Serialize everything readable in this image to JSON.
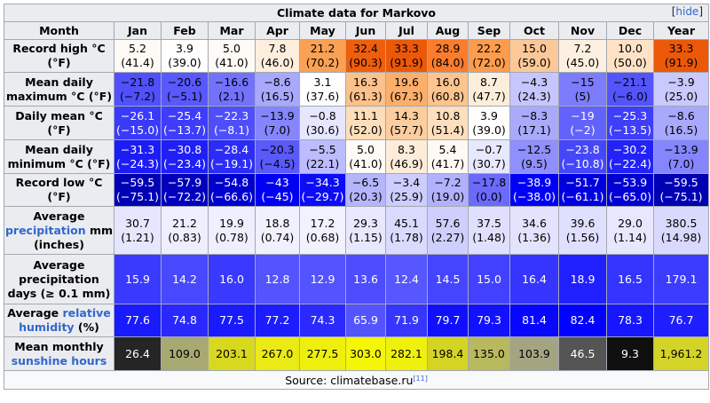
{
  "title": "Climate data for Markovo",
  "hide_label": "hide",
  "header": {
    "month": "Month",
    "months": [
      "Jan",
      "Feb",
      "Mar",
      "Apr",
      "May",
      "Jun",
      "Jul",
      "Aug",
      "Sep",
      "Oct",
      "Nov",
      "Dec",
      "Year"
    ]
  },
  "rows": [
    {
      "id": "record-high",
      "label": "Record high °C (°F)",
      "height": 37,
      "cells": [
        {
          "v": "5.2",
          "s": "(41.4)",
          "bg": "#fefaf5",
          "fg": "#000000"
        },
        {
          "v": "3.9",
          "s": "(39.0)",
          "bg": "#fffefd",
          "fg": "#000000"
        },
        {
          "v": "5.0",
          "s": "(41.0)",
          "bg": "#fefaf5",
          "fg": "#000000"
        },
        {
          "v": "7.8",
          "s": "(46.0)",
          "bg": "#fdeede",
          "fg": "#000000"
        },
        {
          "v": "21.2",
          "s": "(70.2)",
          "bg": "#fba155",
          "fg": "#000000"
        },
        {
          "v": "32.4",
          "s": "(90.3)",
          "bg": "#f05e0c",
          "fg": "#000000"
        },
        {
          "v": "33.3",
          "s": "(91.9)",
          "bg": "#ec5808",
          "fg": "#000000"
        },
        {
          "v": "28.9",
          "s": "(84.0)",
          "bg": "#fb7c2c",
          "fg": "#000000"
        },
        {
          "v": "22.2",
          "s": "(72.0)",
          "bg": "#fc9c4c",
          "fg": "#000000"
        },
        {
          "v": "15.0",
          "s": "(59.0)",
          "bg": "#fcc898",
          "fg": "#000000"
        },
        {
          "v": "7.2",
          "s": "(45.0)",
          "bg": "#fdf0e1",
          "fg": "#000000"
        },
        {
          "v": "10.0",
          "s": "(50.0)",
          "bg": "#fde2c6",
          "fg": "#000000"
        },
        {
          "v": "33.3",
          "s": "(91.9)",
          "bg": "#ec5808",
          "fg": "#000000"
        }
      ]
    },
    {
      "id": "mean-daily-max",
      "label": "Mean daily maximum °C (°F)",
      "height": 38,
      "cells": [
        {
          "v": "−21.8",
          "s": "(−7.2)",
          "bg": "#5050fc",
          "fg": "#000000"
        },
        {
          "v": "−20.6",
          "s": "(−5.1)",
          "bg": "#5858fc",
          "fg": "#000000"
        },
        {
          "v": "−16.6",
          "s": "(2.1)",
          "bg": "#7272fc",
          "fg": "#000000"
        },
        {
          "v": "−8.6",
          "s": "(16.5)",
          "bg": "#a8a8fd",
          "fg": "#000000"
        },
        {
          "v": "3.1",
          "s": "(37.6)",
          "bg": "#fffefe",
          "fg": "#000000"
        },
        {
          "v": "16.3",
          "s": "(61.3)",
          "bg": "#fcc28b",
          "fg": "#000000"
        },
        {
          "v": "19.6",
          "s": "(67.3)",
          "bg": "#fbaf6b",
          "fg": "#000000"
        },
        {
          "v": "16.0",
          "s": "(60.8)",
          "bg": "#fcc48e",
          "fg": "#000000"
        },
        {
          "v": "8.7",
          "s": "(47.7)",
          "bg": "#fdeeda",
          "fg": "#000000"
        },
        {
          "v": "−4.3",
          "s": "(24.3)",
          "bg": "#c6c6fe",
          "fg": "#000000"
        },
        {
          "v": "−15",
          "s": "(5)",
          "bg": "#7c7cfc",
          "fg": "#000000"
        },
        {
          "v": "−21.1",
          "s": "(−6.0)",
          "bg": "#5454fc",
          "fg": "#000000"
        },
        {
          "v": "−3.9",
          "s": "(25.0)",
          "bg": "#c9c9fe",
          "fg": "#000000"
        }
      ]
    },
    {
      "id": "daily-mean",
      "label": "Daily mean °C (°F)",
      "height": 38,
      "cells": [
        {
          "v": "−26.1",
          "s": "(−15.0)",
          "bg": "#3a3afb",
          "fg": "#ffffff"
        },
        {
          "v": "−25.4",
          "s": "(−13.7)",
          "bg": "#3d3dfb",
          "fg": "#ffffff"
        },
        {
          "v": "−22.3",
          "s": "(−8.1)",
          "bg": "#4e4efc",
          "fg": "#ffffff"
        },
        {
          "v": "−13.9",
          "s": "(7.0)",
          "bg": "#8585fd",
          "fg": "#000000"
        },
        {
          "v": "−0.8",
          "s": "(30.6)",
          "bg": "#e6e6fe",
          "fg": "#000000"
        },
        {
          "v": "11.1",
          "s": "(52.0)",
          "bg": "#fdddba",
          "fg": "#000000"
        },
        {
          "v": "14.3",
          "s": "(57.7)",
          "bg": "#fccd9e",
          "fg": "#000000"
        },
        {
          "v": "10.8",
          "s": "(51.4)",
          "bg": "#fddfbe",
          "fg": "#000000"
        },
        {
          "v": "3.9",
          "s": "(39.0)",
          "bg": "#fffefd",
          "fg": "#000000"
        },
        {
          "v": "−8.3",
          "s": "(17.1)",
          "bg": "#aaaafd",
          "fg": "#000000"
        },
        {
          "v": "−19",
          "s": "(−2)",
          "bg": "#6262fc",
          "fg": "#ffffff"
        },
        {
          "v": "−25.3",
          "s": "(−13.5)",
          "bg": "#3e3efb",
          "fg": "#ffffff"
        },
        {
          "v": "−8.6",
          "s": "(16.5)",
          "bg": "#a8a8fd",
          "fg": "#000000"
        }
      ]
    },
    {
      "id": "mean-daily-min",
      "label": "Mean daily minimum °C (°F)",
      "height": 38,
      "cells": [
        {
          "v": "−31.3",
          "s": "(−24.3)",
          "bg": "#1c1cf8",
          "fg": "#ffffff"
        },
        {
          "v": "−30.8",
          "s": "(−23.4)",
          "bg": "#1f1ff8",
          "fg": "#ffffff"
        },
        {
          "v": "−28.4",
          "s": "(−19.1)",
          "bg": "#2c2cf9",
          "fg": "#ffffff"
        },
        {
          "v": "−20.3",
          "s": "(−4.5)",
          "bg": "#5959fc",
          "fg": "#000000"
        },
        {
          "v": "−5.5",
          "s": "(22.1)",
          "bg": "#bcbcfe",
          "fg": "#000000"
        },
        {
          "v": "5.0",
          "s": "(41.0)",
          "bg": "#fefaf5",
          "fg": "#000000"
        },
        {
          "v": "8.3",
          "s": "(46.9)",
          "bg": "#fdecd9",
          "fg": "#000000"
        },
        {
          "v": "5.4",
          "s": "(41.7)",
          "bg": "#fef9f3",
          "fg": "#000000"
        },
        {
          "v": "−0.7",
          "s": "(30.7)",
          "bg": "#e7e7fe",
          "fg": "#000000"
        },
        {
          "v": "−12.5",
          "s": "(9.5)",
          "bg": "#8f8ffd",
          "fg": "#000000"
        },
        {
          "v": "−23.8",
          "s": "(−10.8)",
          "bg": "#4646fb",
          "fg": "#ffffff"
        },
        {
          "v": "−30.2",
          "s": "(−22.4)",
          "bg": "#2222f8",
          "fg": "#ffffff"
        },
        {
          "v": "−13.9",
          "s": "(7.0)",
          "bg": "#8585fd",
          "fg": "#000000"
        }
      ]
    },
    {
      "id": "record-low",
      "label": "Record low °C (°F)",
      "height": 37,
      "cells": [
        {
          "v": "−59.5",
          "s": "(−75.1)",
          "bg": "#0000b4",
          "fg": "#ffffff"
        },
        {
          "v": "−57.9",
          "s": "(−72.2)",
          "bg": "#0000bd",
          "fg": "#ffffff"
        },
        {
          "v": "−54.8",
          "s": "(−66.6)",
          "bg": "#0000ce",
          "fg": "#ffffff"
        },
        {
          "v": "−43",
          "s": "(−45)",
          "bg": "#0000f2",
          "fg": "#ffffff"
        },
        {
          "v": "−34.3",
          "s": "(−29.7)",
          "bg": "#0c0cf6",
          "fg": "#ffffff"
        },
        {
          "v": "−6.5",
          "s": "(20.3)",
          "bg": "#b5b5fd",
          "fg": "#000000"
        },
        {
          "v": "−3.4",
          "s": "(25.9)",
          "bg": "#cdcdfe",
          "fg": "#000000"
        },
        {
          "v": "−7.2",
          "s": "(19.0)",
          "bg": "#b1b1fd",
          "fg": "#000000"
        },
        {
          "v": "−17.8",
          "s": "(0.0)",
          "bg": "#6a6afc",
          "fg": "#000000"
        },
        {
          "v": "−38.9",
          "s": "(−38.0)",
          "bg": "#0000fa",
          "fg": "#ffffff"
        },
        {
          "v": "−51.7",
          "s": "(−61.1)",
          "bg": "#0000de",
          "fg": "#ffffff"
        },
        {
          "v": "−53.9",
          "s": "(−65.0)",
          "bg": "#0000d2",
          "fg": "#ffffff"
        },
        {
          "v": "−59.5",
          "s": "(−75.1)",
          "bg": "#0000b4",
          "fg": "#ffffff"
        }
      ]
    },
    {
      "id": "avg-precip",
      "label": "Average precipitation mm (inches)",
      "height": 54,
      "cells": [
        {
          "v": "30.7",
          "s": "(1.21)",
          "bg": "#e6e6fe",
          "fg": "#000000"
        },
        {
          "v": "21.2",
          "s": "(0.83)",
          "bg": "#eeeeff",
          "fg": "#000000"
        },
        {
          "v": "19.9",
          "s": "(0.78)",
          "bg": "#efefff",
          "fg": "#000000"
        },
        {
          "v": "18.8",
          "s": "(0.74)",
          "bg": "#f0f0ff",
          "fg": "#000000"
        },
        {
          "v": "17.2",
          "s": "(0.68)",
          "bg": "#f1f1ff",
          "fg": "#000000"
        },
        {
          "v": "29.3",
          "s": "(1.15)",
          "bg": "#e7e7fe",
          "fg": "#000000"
        },
        {
          "v": "45.1",
          "s": "(1.78)",
          "bg": "#dadafe",
          "fg": "#000000"
        },
        {
          "v": "57.6",
          "s": "(2.27)",
          "bg": "#cfcffe",
          "fg": "#000000"
        },
        {
          "v": "37.5",
          "s": "(1.48)",
          "bg": "#e0e0fe",
          "fg": "#000000"
        },
        {
          "v": "34.6",
          "s": "(1.36)",
          "bg": "#e3e3fe",
          "fg": "#000000"
        },
        {
          "v": "39.6",
          "s": "(1.56)",
          "bg": "#dfdffe",
          "fg": "#000000"
        },
        {
          "v": "29.0",
          "s": "(1.14)",
          "bg": "#e7e7fe",
          "fg": "#000000"
        },
        {
          "v": "380.5",
          "s": "(14.98)",
          "bg": "#d9d9fe",
          "fg": "#000000"
        }
      ]
    },
    {
      "id": "precip-days",
      "label": "Average precipitation days (≥ 0.1 mm)",
      "height": 56,
      "cells": [
        {
          "v": "15.9",
          "s": "",
          "bg": "#3a3aff",
          "fg": "#ffffff"
        },
        {
          "v": "14.2",
          "s": "",
          "bg": "#4848ff",
          "fg": "#ffffff"
        },
        {
          "v": "16.0",
          "s": "",
          "bg": "#3939ff",
          "fg": "#ffffff"
        },
        {
          "v": "12.8",
          "s": "",
          "bg": "#5454ff",
          "fg": "#ffffff"
        },
        {
          "v": "12.9",
          "s": "",
          "bg": "#5353ff",
          "fg": "#ffffff"
        },
        {
          "v": "13.6",
          "s": "",
          "bg": "#4d4dff",
          "fg": "#ffffff"
        },
        {
          "v": "12.4",
          "s": "",
          "bg": "#5757ff",
          "fg": "#ffffff"
        },
        {
          "v": "14.5",
          "s": "",
          "bg": "#4545ff",
          "fg": "#ffffff"
        },
        {
          "v": "15.0",
          "s": "",
          "bg": "#4141ff",
          "fg": "#ffffff"
        },
        {
          "v": "16.4",
          "s": "",
          "bg": "#3535ff",
          "fg": "#ffffff"
        },
        {
          "v": "18.9",
          "s": "",
          "bg": "#2020ff",
          "fg": "#ffffff"
        },
        {
          "v": "16.5",
          "s": "",
          "bg": "#3434ff",
          "fg": "#ffffff"
        },
        {
          "v": "179.1",
          "s": "",
          "bg": "#3c3cff",
          "fg": "#ffffff"
        }
      ]
    },
    {
      "id": "humidity",
      "label": "Average relative humidity (%)",
      "height": 37,
      "cells": [
        {
          "v": "77.6",
          "s": "",
          "bg": "#1a1aff",
          "fg": "#ffffff"
        },
        {
          "v": "74.8",
          "s": "",
          "bg": "#2828ff",
          "fg": "#ffffff"
        },
        {
          "v": "77.5",
          "s": "",
          "bg": "#1a1aff",
          "fg": "#ffffff"
        },
        {
          "v": "77.2",
          "s": "",
          "bg": "#1c1cff",
          "fg": "#ffffff"
        },
        {
          "v": "74.3",
          "s": "",
          "bg": "#2a2aff",
          "fg": "#ffffff"
        },
        {
          "v": "65.9",
          "s": "",
          "bg": "#5454ff",
          "fg": "#ffffff"
        },
        {
          "v": "71.9",
          "s": "",
          "bg": "#3636ff",
          "fg": "#ffffff"
        },
        {
          "v": "79.7",
          "s": "",
          "bg": "#1010ff",
          "fg": "#ffffff"
        },
        {
          "v": "79.3",
          "s": "",
          "bg": "#1212ff",
          "fg": "#ffffff"
        },
        {
          "v": "81.4",
          "s": "",
          "bg": "#0707ff",
          "fg": "#ffffff"
        },
        {
          "v": "82.4",
          "s": "",
          "bg": "#0202ff",
          "fg": "#ffffff"
        },
        {
          "v": "78.3",
          "s": "",
          "bg": "#1616ff",
          "fg": "#ffffff"
        },
        {
          "v": "76.7",
          "s": "",
          "bg": "#1e1eff",
          "fg": "#ffffff"
        }
      ]
    },
    {
      "id": "sunshine",
      "label": "Mean monthly sunshine hours",
      "height": 38,
      "cells": [
        {
          "v": "26.4",
          "s": "",
          "bg": "#252525",
          "fg": "#ffffff"
        },
        {
          "v": "109.0",
          "s": "",
          "bg": "#a8a872",
          "fg": "#000000"
        },
        {
          "v": "203.1",
          "s": "",
          "bg": "#d8d81e",
          "fg": "#000000"
        },
        {
          "v": "267.0",
          "s": "",
          "bg": "#eaea14",
          "fg": "#000000"
        },
        {
          "v": "277.5",
          "s": "",
          "bg": "#efef0e",
          "fg": "#000000"
        },
        {
          "v": "303.0",
          "s": "",
          "bg": "#f5f508",
          "fg": "#000000"
        },
        {
          "v": "282.1",
          "s": "",
          "bg": "#f0f00d",
          "fg": "#000000"
        },
        {
          "v": "198.4",
          "s": "",
          "bg": "#d4d424",
          "fg": "#000000"
        },
        {
          "v": "135.0",
          "s": "",
          "bg": "#b8b85e",
          "fg": "#000000"
        },
        {
          "v": "103.9",
          "s": "",
          "bg": "#a4a482",
          "fg": "#000000"
        },
        {
          "v": "46.5",
          "s": "",
          "bg": "#545454",
          "fg": "#ffffff"
        },
        {
          "v": "9.3",
          "s": "",
          "bg": "#0f0f0f",
          "fg": "#ffffff"
        },
        {
          "v": "1,961.2",
          "s": "",
          "bg": "#d4d428",
          "fg": "#000000"
        }
      ]
    }
  ],
  "row_labels_rich": {
    "avg-precip": {
      "pre": "Average ",
      "link": "precipitation",
      "post": " mm (inches)"
    },
    "humidity": {
      "pre": "Average ",
      "link": "relative humidity",
      "post": " (%)"
    },
    "sunshine": {
      "pre": "Mean monthly ",
      "link": "sunshine hours",
      "post": ""
    }
  },
  "source": {
    "text": "Source: climatebase.ru",
    "ref": "[11]"
  }
}
